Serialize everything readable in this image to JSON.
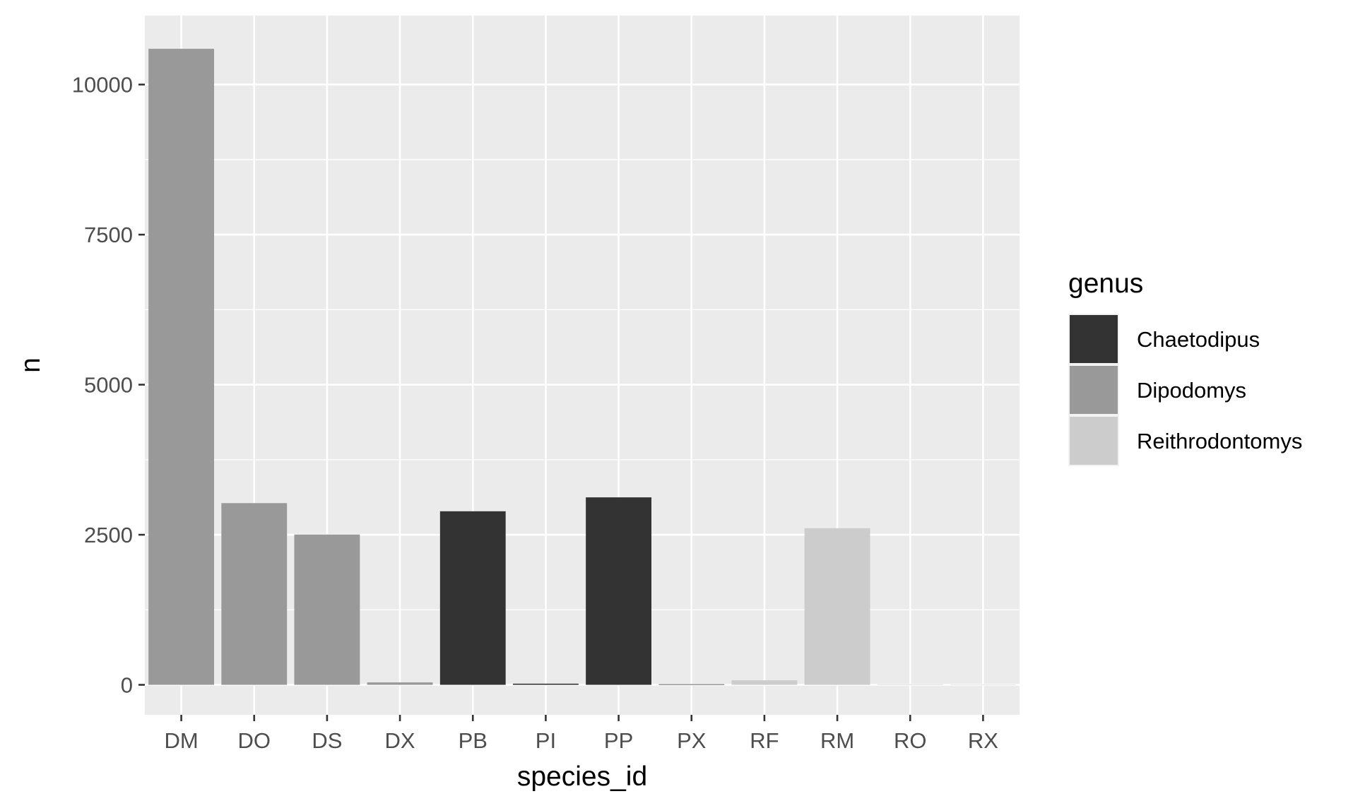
{
  "chart_data": {
    "type": "bar",
    "xlabel": "species_id",
    "ylabel": "n",
    "categories": [
      "DM",
      "DO",
      "DS",
      "DX",
      "PB",
      "PI",
      "PP",
      "PX",
      "RF",
      "RM",
      "RO",
      "RX"
    ],
    "values": [
      10596,
      3027,
      2504,
      40,
      2891,
      19,
      3123,
      9,
      75,
      2609,
      8,
      2
    ],
    "genus": [
      "Dipodomys",
      "Dipodomys",
      "Dipodomys",
      "Dipodomys",
      "Chaetodipus",
      "Chaetodipus",
      "Chaetodipus",
      "Chaetodipus",
      "Reithrodontomys",
      "Reithrodontomys",
      "Reithrodontomys",
      "Reithrodontomys"
    ],
    "ylim": [
      -500,
      11150
    ],
    "yticks": [
      0,
      2500,
      5000,
      7500,
      10000
    ],
    "ytick_labels": [
      "0",
      "2500",
      "5000",
      "7500",
      "10000"
    ],
    "grid": true,
    "legend": {
      "title": "genus",
      "placement": "right",
      "entries": [
        {
          "label": "Chaetodipus",
          "color": "#333333"
        },
        {
          "label": "Dipodomys",
          "color": "#999999"
        },
        {
          "label": "Reithrodontomys",
          "color": "#cccccc"
        }
      ]
    },
    "panel_color": "#ebebeb",
    "grid_color": "#ffffff"
  }
}
